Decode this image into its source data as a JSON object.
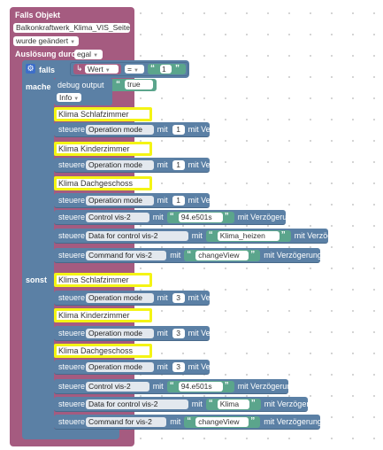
{
  "trigger": {
    "header": "Falls Objekt",
    "object_id": "Balkonkraftwerk_Klima_VIS_Seite",
    "condition": "wurde geändert",
    "source_label": "Auslösung durch",
    "source_value": "egal"
  },
  "if_block": {
    "falls_label": "falls",
    "then_label": "mache",
    "else_label": "sonst",
    "compare": {
      "left": "Wert",
      "operator": "=",
      "right": "1"
    }
  },
  "debug": {
    "label": "debug output",
    "value": "true",
    "level": "Info"
  },
  "common": {
    "set_label": "steuere",
    "with_label": "mit",
    "delay_label": "mit Verzögerung"
  },
  "then_items": [
    {
      "type": "comment",
      "text": "Klima Schlafzimmer"
    },
    {
      "type": "set",
      "target": "Operation mode",
      "value": "1",
      "value_kind": "number"
    },
    {
      "type": "comment",
      "text": "Klima Kinderzimmer"
    },
    {
      "type": "set",
      "target": "Operation mode",
      "value": "1",
      "value_kind": "number"
    },
    {
      "type": "comment",
      "text": "Klima Dachgeschoss"
    },
    {
      "type": "set",
      "target": "Operation mode",
      "value": "1",
      "value_kind": "number"
    },
    {
      "type": "set",
      "target": "Control vis-2",
      "value": "94.e501s",
      "value_kind": "text"
    },
    {
      "type": "set",
      "target": "Data for control vis-2",
      "value": "Klima_heizen",
      "value_kind": "text"
    },
    {
      "type": "set",
      "target": "Command for vis-2",
      "value": "changeView",
      "value_kind": "text"
    }
  ],
  "else_items": [
    {
      "type": "comment",
      "text": "Klima Schlafzimmer"
    },
    {
      "type": "set",
      "target": "Operation mode",
      "value": "3",
      "value_kind": "number"
    },
    {
      "type": "comment",
      "text": "Klima Kinderzimmer"
    },
    {
      "type": "set",
      "target": "Operation mode",
      "value": "3",
      "value_kind": "number"
    },
    {
      "type": "comment",
      "text": "Klima Dachgeschoss"
    },
    {
      "type": "set",
      "target": "Operation mode",
      "value": "3",
      "value_kind": "number"
    },
    {
      "type": "set",
      "target": "Control vis-2",
      "value": "94.e501s",
      "value_kind": "text"
    },
    {
      "type": "set",
      "target": "Data for control vis-2",
      "value": "Klima",
      "value_kind": "text"
    },
    {
      "type": "set",
      "target": "Command for vis-2",
      "value": "changeView",
      "value_kind": "text"
    }
  ],
  "colors": {
    "trigger": "#a55b80",
    "control": "#5b80a5",
    "logic": "#5b67a5",
    "text": "#5ba58c",
    "comment_border": "#f4f414"
  }
}
